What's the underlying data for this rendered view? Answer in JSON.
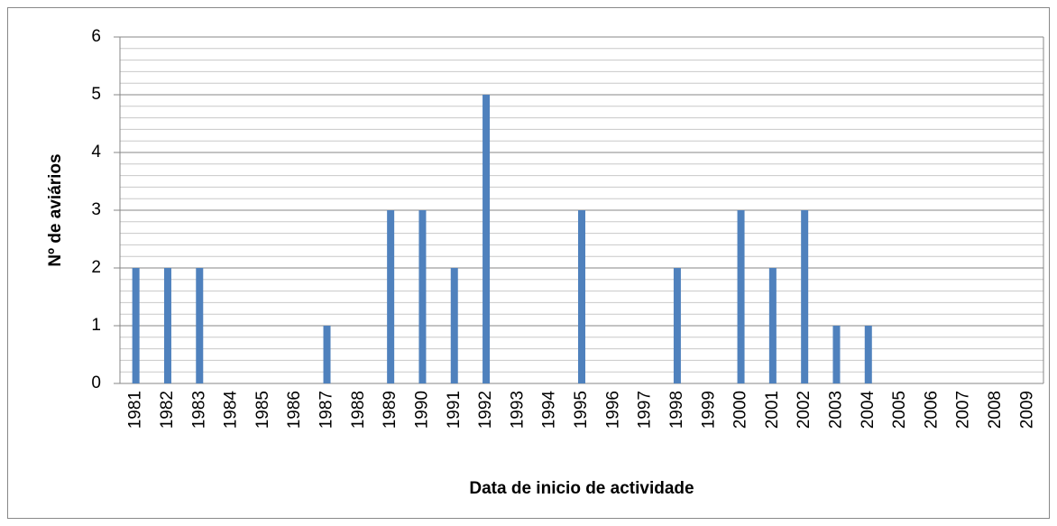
{
  "chart_data": {
    "type": "bar",
    "x_label": "Data de inicio de actividade",
    "y_label": "Nº de aviários",
    "categories": [
      "1981",
      "1982",
      "1983",
      "1984",
      "1985",
      "1986",
      "1987",
      "1988",
      "1989",
      "1990",
      "1991",
      "1992",
      "1993",
      "1994",
      "1995",
      "1996",
      "1997",
      "1998",
      "1999",
      "2000",
      "2001",
      "2002",
      "2003",
      "2004",
      "2005",
      "2006",
      "2007",
      "2008",
      "2009"
    ],
    "values": [
      2,
      2,
      2,
      0,
      0,
      0,
      1,
      0,
      3,
      3,
      2,
      5,
      0,
      0,
      3,
      0,
      0,
      2,
      0,
      3,
      2,
      3,
      1,
      1,
      0,
      0,
      0,
      0,
      0
    ],
    "color": "#4f81bd",
    "ylim": [
      0,
      6
    ],
    "yticks": [
      0,
      1,
      2,
      3,
      4,
      5,
      6
    ],
    "grid": true,
    "minor_grid": true
  }
}
